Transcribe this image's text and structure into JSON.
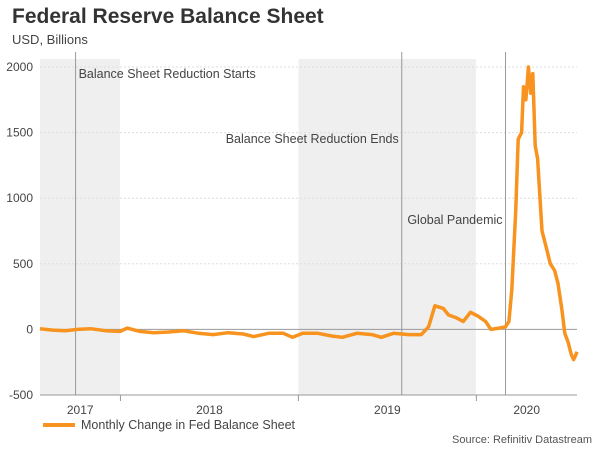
{
  "title": "Federal Reserve Balance Sheet",
  "subtitle": "USD, Billions",
  "source": "Source: Refinitiv Datastream",
  "colors": {
    "series": "#f7931e",
    "shade": "#efefef",
    "event_line": "#999999"
  },
  "chart_data": {
    "type": "line",
    "title": "Federal Reserve Balance Sheet",
    "ylabel": "USD, Billions",
    "xlabel": "",
    "ylim": [
      -500,
      2000
    ],
    "yticks": [
      -500,
      0,
      500,
      1000,
      1500,
      2000
    ],
    "xlim": [
      "2017-07-20",
      "2020-07-26"
    ],
    "xtick_labels": [
      "2017",
      "2018",
      "2019",
      "2020"
    ],
    "grid": "horizontal dotted",
    "legend": "bottom-left",
    "shaded_periods": [
      [
        "2017-07-20",
        "2017-12-31"
      ],
      [
        "2019-01-01",
        "2019-12-31"
      ]
    ],
    "annotations": [
      {
        "date": "2017-10-01",
        "text": "Balance Sheet Reduction Starts"
      },
      {
        "date": "2019-08-01",
        "text": "Balance Sheet Reduction Ends"
      },
      {
        "date": "2020-03-01",
        "text": "Global Pandemic"
      }
    ],
    "series": [
      {
        "name": "Monthly Change in Fed Balance Sheet",
        "points": [
          [
            "2017-07-20",
            5
          ],
          [
            "2017-08-15",
            -5
          ],
          [
            "2017-09-10",
            -10
          ],
          [
            "2017-10-05",
            0
          ],
          [
            "2017-11-01",
            5
          ],
          [
            "2017-12-01",
            -10
          ],
          [
            "2017-12-31",
            -15
          ],
          [
            "2018-01-15",
            10
          ],
          [
            "2018-02-10",
            -15
          ],
          [
            "2018-03-10",
            -25
          ],
          [
            "2018-04-10",
            -20
          ],
          [
            "2018-05-10",
            -10
          ],
          [
            "2018-06-10",
            -30
          ],
          [
            "2018-07-10",
            -40
          ],
          [
            "2018-08-10",
            -25
          ],
          [
            "2018-09-10",
            -35
          ],
          [
            "2018-10-01",
            -55
          ],
          [
            "2018-11-01",
            -30
          ],
          [
            "2018-12-01",
            -30
          ],
          [
            "2018-12-20",
            -60
          ],
          [
            "2019-01-10",
            -30
          ],
          [
            "2019-02-10",
            -30
          ],
          [
            "2019-03-10",
            -50
          ],
          [
            "2019-04-01",
            -60
          ],
          [
            "2019-05-01",
            -30
          ],
          [
            "2019-06-01",
            -40
          ],
          [
            "2019-06-20",
            -60
          ],
          [
            "2019-07-15",
            -30
          ],
          [
            "2019-08-15",
            -40
          ],
          [
            "2019-09-10",
            -40
          ],
          [
            "2019-09-25",
            20
          ],
          [
            "2019-10-08",
            180
          ],
          [
            "2019-10-25",
            160
          ],
          [
            "2019-11-05",
            110
          ],
          [
            "2019-11-20",
            90
          ],
          [
            "2019-12-05",
            60
          ],
          [
            "2019-12-20",
            130
          ],
          [
            "2020-01-05",
            100
          ],
          [
            "2020-01-20",
            60
          ],
          [
            "2020-01-31",
            0
          ],
          [
            "2020-02-17",
            10
          ],
          [
            "2020-03-01",
            20
          ],
          [
            "2020-03-08",
            60
          ],
          [
            "2020-03-14",
            300
          ],
          [
            "2020-03-22",
            900
          ],
          [
            "2020-03-27",
            1450
          ],
          [
            "2020-04-03",
            1500
          ],
          [
            "2020-04-07",
            1850
          ],
          [
            "2020-04-12",
            1750
          ],
          [
            "2020-04-17",
            2000
          ],
          [
            "2020-04-22",
            1800
          ],
          [
            "2020-04-26",
            1950
          ],
          [
            "2020-05-01",
            1400
          ],
          [
            "2020-05-06",
            1300
          ],
          [
            "2020-05-10",
            1050
          ],
          [
            "2020-05-15",
            750
          ],
          [
            "2020-05-22",
            650
          ],
          [
            "2020-06-01",
            500
          ],
          [
            "2020-06-10",
            450
          ],
          [
            "2020-06-17",
            350
          ],
          [
            "2020-06-25",
            150
          ],
          [
            "2020-07-01",
            -30
          ],
          [
            "2020-07-08",
            -100
          ],
          [
            "2020-07-14",
            -190
          ],
          [
            "2020-07-19",
            -230
          ],
          [
            "2020-07-23",
            -200
          ],
          [
            "2020-07-26",
            -170
          ]
        ]
      }
    ]
  }
}
